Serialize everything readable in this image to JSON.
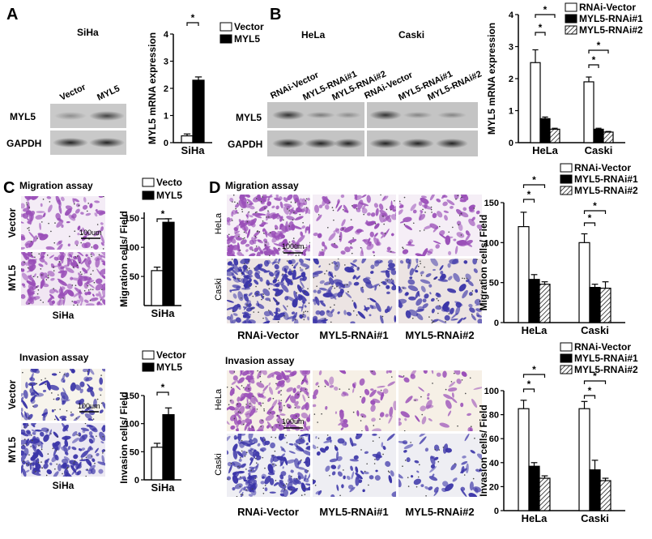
{
  "panel_labels": [
    "A",
    "B",
    "C",
    "D"
  ],
  "blot_A": {
    "title": "SiHa",
    "lanes": [
      "Vector",
      "MYL5"
    ],
    "rows": [
      "MYL5",
      "GAPDH"
    ]
  },
  "blot_B": {
    "groups": [
      "HeLa",
      "Caski"
    ],
    "lanes": [
      "RNAi-Vector",
      "MYL5-RNAi#1",
      "MYL5-RNAi#2",
      "RNAi-Vector",
      "MYL5-RNAi#1",
      "MYL5-RNAi#2"
    ],
    "rows": [
      "MYL5",
      "GAPDH"
    ]
  },
  "images_C": [
    {
      "title": "Migration assay",
      "rows": [
        "Vector",
        "MYL5"
      ],
      "scale_bar": "100um",
      "caption": "SiHa"
    },
    {
      "title": "Invasion assay",
      "rows": [
        "Vector",
        "MYL5"
      ],
      "scale_bar": "100um",
      "caption": "SiHa"
    }
  ],
  "images_D": [
    {
      "title": "Migration assay",
      "rows": [
        "HeLa",
        "Caski"
      ],
      "scale_bar": "100um",
      "columns": [
        "RNAi-Vector",
        "MYL5-RNAi#1",
        "MYL5-RNAi#2"
      ]
    },
    {
      "title": "Invasion assay",
      "rows": [
        "HeLa",
        "Caski"
      ],
      "scale_bar": "100um",
      "columns": [
        "RNAi-Vector",
        "MYL5-RNAi#1",
        "MYL5-RNAi#2"
      ]
    }
  ],
  "chart_data": [
    {
      "type": "bar",
      "categories": [
        "SiHa"
      ],
      "ylabel": "MYL5  mRNA  expression",
      "ylim": [
        0,
        4
      ],
      "yticks": [
        0,
        1,
        2,
        3,
        4
      ],
      "series": [
        {
          "name": "Vector",
          "color": "#ffffff",
          "values": [
            0.25
          ],
          "errors": [
            0.07
          ]
        },
        {
          "name": "MYL5",
          "color": "#000000",
          "values": [
            2.3
          ],
          "errors": [
            0.12
          ]
        }
      ],
      "annotations": [
        "*"
      ]
    },
    {
      "type": "bar",
      "categories": [
        "HeLa",
        "Caski"
      ],
      "ylabel": "MYL5  mRNA  expression",
      "ylim": [
        0,
        4
      ],
      "yticks": [
        0,
        1,
        2,
        3,
        4
      ],
      "series": [
        {
          "name": "RNAi-Vector",
          "color": "#ffffff",
          "values": [
            2.5,
            1.9
          ],
          "errors": [
            0.4,
            0.15
          ]
        },
        {
          "name": "MYL5-RNAi#1",
          "color": "#000000",
          "values": [
            0.75,
            0.42
          ],
          "errors": [
            0.05,
            0.03
          ]
        },
        {
          "name": "MYL5-RNAi#2",
          "color": "#ffffff",
          "pattern": "hatch",
          "values": [
            0.42,
            0.33
          ],
          "errors": [
            0.03,
            0.02
          ]
        }
      ],
      "annotations": [
        "*",
        "*",
        "*",
        "*"
      ]
    },
    {
      "type": "bar",
      "categories": [
        "SiHa"
      ],
      "ylabel": "Migration cells/ Field",
      "ylim": [
        0,
        160
      ],
      "yticks": [
        50,
        100,
        150
      ],
      "series": [
        {
          "name": "Vecto",
          "color": "#ffffff",
          "values": [
            60
          ],
          "errors": [
            6
          ]
        },
        {
          "name": "MYL5",
          "color": "#000000",
          "values": [
            143
          ],
          "errors": [
            6
          ]
        }
      ],
      "annotations": [
        "*"
      ]
    },
    {
      "type": "bar",
      "categories": [
        "SiHa"
      ],
      "ylabel": "Invasion cells/ Field",
      "ylim": [
        0,
        150
      ],
      "yticks": [
        0,
        50,
        100,
        150
      ],
      "series": [
        {
          "name": "Vector",
          "color": "#ffffff",
          "values": [
            58
          ],
          "errors": [
            7
          ]
        },
        {
          "name": "MYL5",
          "color": "#000000",
          "values": [
            116
          ],
          "errors": [
            12
          ]
        }
      ],
      "annotations": [
        "*"
      ]
    },
    {
      "type": "bar",
      "categories": [
        "HeLa",
        "Caski"
      ],
      "ylabel": "Migration cells/ Field",
      "ylim": [
        0,
        150
      ],
      "yticks": [
        0,
        50,
        100,
        150
      ],
      "series": [
        {
          "name": "RNAi-Vector",
          "color": "#ffffff",
          "values": [
            120,
            100
          ],
          "errors": [
            18,
            11
          ]
        },
        {
          "name": "MYL5-RNAi#1",
          "color": "#000000",
          "values": [
            54,
            44
          ],
          "errors": [
            6,
            4
          ]
        },
        {
          "name": "MYL5-RNAi#2",
          "color": "#ffffff",
          "pattern": "hatch",
          "values": [
            48,
            43
          ],
          "errors": [
            3,
            8
          ]
        }
      ],
      "annotations": [
        "*",
        "*",
        "*",
        "*"
      ]
    },
    {
      "type": "bar",
      "categories": [
        "HeLa",
        "Caski"
      ],
      "ylabel": "Invasion cells/ Field",
      "ylim": [
        0,
        100
      ],
      "yticks": [
        0,
        20,
        40,
        60,
        80,
        100
      ],
      "series": [
        {
          "name": "RNAi-Vector",
          "color": "#ffffff",
          "values": [
            85,
            85
          ],
          "errors": [
            7,
            6
          ]
        },
        {
          "name": "MYL5-RNAi#1",
          "color": "#000000",
          "values": [
            37,
            34
          ],
          "errors": [
            3,
            8
          ]
        },
        {
          "name": "MYL5-RNAi#2",
          "color": "#ffffff",
          "pattern": "hatch",
          "values": [
            27,
            25
          ],
          "errors": [
            2,
            2
          ]
        }
      ],
      "annotations": [
        "*",
        "*",
        "*",
        "*"
      ]
    }
  ]
}
